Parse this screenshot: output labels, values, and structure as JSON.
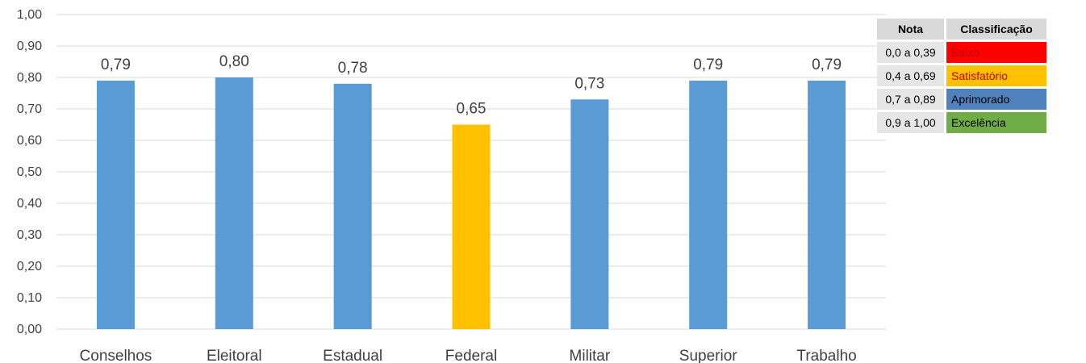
{
  "chart_data": {
    "type": "bar",
    "categories": [
      "Conselhos",
      "Eleitoral",
      "Estadual",
      "Federal",
      "Militar",
      "Superior",
      "Trabalho"
    ],
    "values": [
      0.79,
      0.8,
      0.78,
      0.65,
      0.73,
      0.79,
      0.79
    ],
    "data_labels": [
      "0,79",
      "0,80",
      "0,78",
      "0,65",
      "0,73",
      "0,79",
      "0,79"
    ],
    "bar_colors": [
      "#5b9bd5",
      "#5b9bd5",
      "#5b9bd5",
      "#ffc000",
      "#5b9bd5",
      "#5b9bd5",
      "#5b9bd5"
    ],
    "ylim": [
      0,
      1
    ],
    "yticks": [
      "0,00",
      "0,10",
      "0,20",
      "0,30",
      "0,40",
      "0,50",
      "0,60",
      "0,70",
      "0,80",
      "0,90",
      "1,00"
    ],
    "grid": true,
    "title": "",
    "xlabel": "",
    "ylabel": ""
  },
  "legend_table": {
    "headers": {
      "nota": "Nota",
      "classificacao": "Classificação"
    },
    "rows": [
      {
        "nota": "0,0 a 0,39",
        "label": "Baixo",
        "bg": "#ff0000",
        "fg": "#c00000"
      },
      {
        "nota": "0,4 a 0,69",
        "label": "Satisfatório",
        "bg": "#ffc000",
        "fg": "#c00000"
      },
      {
        "nota": "0,7 a 0,89",
        "label": "Aprimorado",
        "bg": "#4f81bd",
        "fg": "#000000"
      },
      {
        "nota": "0,9 a 1,00",
        "label": "Excelência",
        "bg": "#70ad47",
        "fg": "#000000"
      }
    ]
  }
}
